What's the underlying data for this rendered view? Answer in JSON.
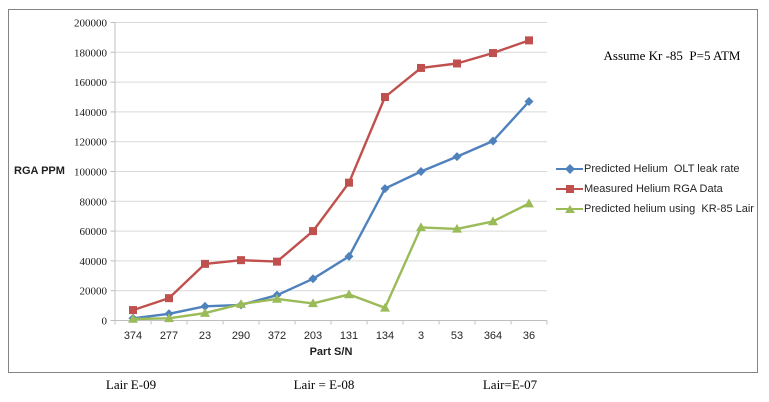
{
  "chart": {
    "annotation": "Assume Kr -85  P=5 ATM",
    "footer_labels": [
      "Lair E-09",
      "Lair = E-08",
      "Lair=E-07"
    ]
  },
  "chart_data": {
    "type": "line",
    "title": "",
    "xlabel": "Part S/N",
    "ylabel": "RGA PPM",
    "categories": [
      "374",
      "277",
      "23",
      "290",
      "372",
      "203",
      "131",
      "134",
      "3",
      "53",
      "364",
      "36"
    ],
    "series": [
      {
        "name": "Predicted Helium  OLT leak rate",
        "marker": "diamond",
        "color": "#4F81BD",
        "values": [
          1500,
          4500,
          9500,
          10500,
          17000,
          28000,
          43000,
          88500,
          100000,
          110000,
          120500,
          147000
        ]
      },
      {
        "name": "Measured Helium RGA Data",
        "marker": "square",
        "color": "#C0504D",
        "values": [
          7000,
          15000,
          38000,
          40500,
          39500,
          60000,
          92500,
          150000,
          169500,
          172500,
          179500,
          188000
        ]
      },
      {
        "name": "Predicted helium using  KR-85 Lair",
        "marker": "triangle",
        "color": "#9BBB59",
        "values": [
          1000,
          1500,
          5000,
          11000,
          14500,
          11500,
          17500,
          8500,
          62500,
          61500,
          66500,
          78500
        ]
      }
    ],
    "ylim": [
      0,
      200000
    ],
    "y_tick_step": 20000,
    "grid": true,
    "legend_position": "right",
    "gridline_color": "#D9D9D9",
    "axis_color": "#BFBFBF",
    "background": "#FFFFFF"
  }
}
